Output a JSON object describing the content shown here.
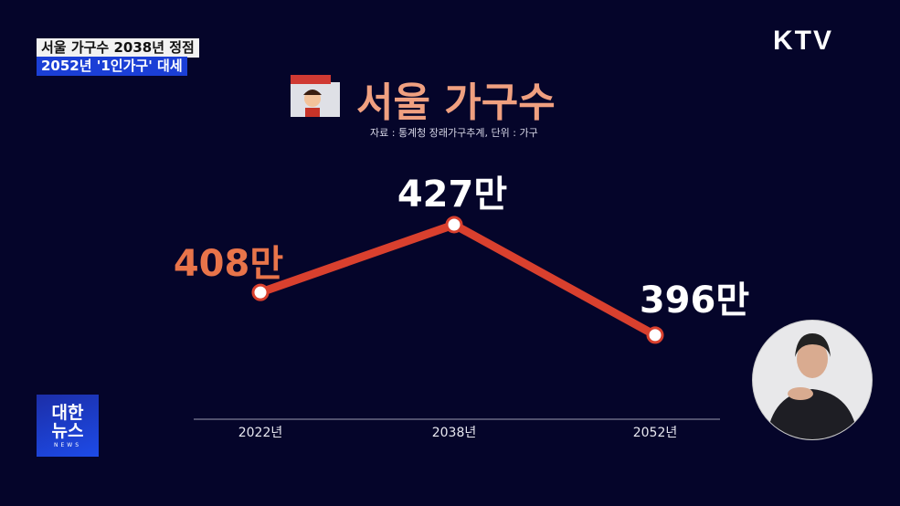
{
  "caption": {
    "line1": "서울 가구수 2038년 정점",
    "line2": "2052년 '1인가구' 대세"
  },
  "channel_logo": "KTV",
  "news_logo": {
    "korean": "대한\n뉴스",
    "english": "NEWS"
  },
  "chart_data": {
    "type": "line",
    "title": "서울 가구수",
    "source": "자료 : 통계청 장래가구추계, 단위 : 가구",
    "categories": [
      "2022년",
      "2038년",
      "2052년"
    ],
    "values": [
      408,
      427,
      396
    ],
    "data_labels": [
      "408만",
      "427만",
      "396만"
    ],
    "unit": "만",
    "line_color": "#d9402e",
    "label_colors": [
      "#e8744a",
      "#ffffff",
      "#ffffff"
    ],
    "grid": false
  }
}
